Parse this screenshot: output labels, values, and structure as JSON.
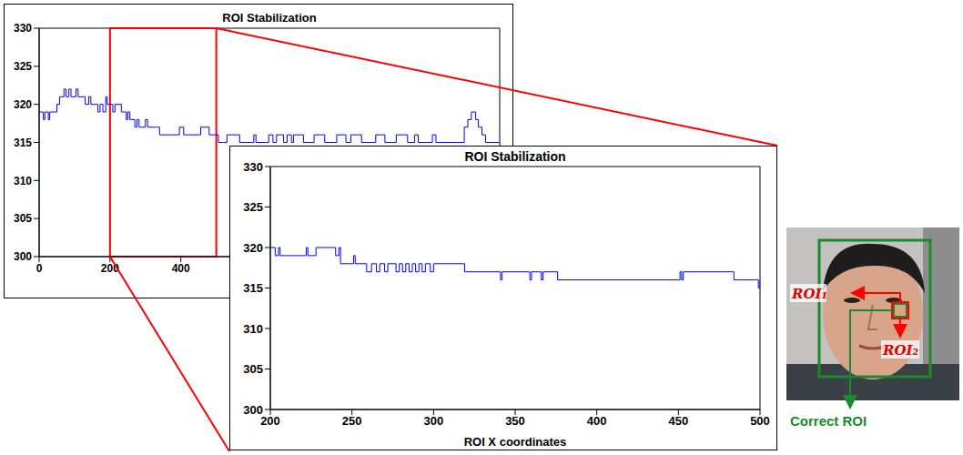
{
  "chart_data": [
    {
      "type": "line",
      "title": "ROI Stabilization",
      "color": "#0000ff",
      "x": [
        0,
        12,
        16,
        26,
        30,
        44,
        50,
        58,
        70,
        76,
        84,
        90,
        104,
        110,
        124,
        130,
        140,
        146,
        160,
        166,
        172,
        180,
        188,
        192,
        200,
        208,
        214,
        226,
        232,
        240,
        246,
        250,
        256,
        262,
        270,
        276,
        282,
        290,
        300,
        306,
        330,
        340,
        380,
        396,
        408,
        450,
        456,
        470,
        480,
        500,
        506,
        520,
        530,
        560,
        566,
        600,
        606,
        612,
        640,
        648,
        660,
        670,
        680,
        690,
        700,
        712,
        718,
        740,
        746,
        770,
        776,
        800,
        806,
        830,
        840,
        860,
        866,
        880,
        900,
        910,
        940,
        950,
        970,
        976,
        1000,
        1008,
        1030,
        1040,
        1060,
        1070,
        1100,
        1110,
        1120,
        1180,
        1200,
        1210,
        1220,
        1232,
        1240,
        1250,
        1260,
        1300
      ],
      "values": [
        319,
        318,
        319,
        318,
        319,
        319,
        320,
        321,
        322,
        321,
        322,
        321,
        322,
        321,
        321,
        320,
        321,
        320,
        320,
        319,
        320,
        319,
        321,
        320,
        320,
        319,
        320,
        320,
        319,
        319,
        318,
        319,
        318,
        318,
        317,
        318,
        317,
        317,
        318,
        317,
        317,
        316,
        316,
        317,
        316,
        316,
        317,
        317,
        316,
        316,
        315,
        315,
        316,
        316,
        315,
        315,
        316,
        315,
        315,
        316,
        315,
        316,
        316,
        315,
        316,
        315,
        316,
        316,
        315,
        315,
        316,
        316,
        315,
        315,
        316,
        316,
        315,
        316,
        316,
        315,
        315,
        316,
        316,
        315,
        315,
        316,
        316,
        315,
        316,
        315,
        315,
        316,
        315,
        315,
        317,
        318,
        319,
        318,
        317,
        316,
        315,
        315
      ],
      "xlim": [
        0,
        1300
      ],
      "ylim": [
        300,
        330
      ],
      "xticks": [
        0,
        200,
        400
      ],
      "yticks": [
        300,
        305,
        310,
        315,
        320,
        325,
        330
      ]
    },
    {
      "type": "line",
      "title": "ROI Stabilization",
      "xlabel": "ROI X coordinates",
      "color": "#0000ff",
      "x": [
        200,
        203,
        205,
        206,
        222,
        223,
        228,
        238,
        240,
        242,
        243,
        250,
        251,
        252,
        258,
        259,
        262,
        265,
        267,
        270,
        272,
        276,
        277,
        279,
        281,
        283,
        285,
        287,
        289,
        291,
        293,
        295,
        297,
        298,
        300,
        318,
        319,
        340,
        341,
        342,
        358,
        359,
        360,
        365,
        366,
        367,
        375,
        376,
        450,
        451,
        452,
        453,
        483,
        484,
        498,
        499,
        500
      ],
      "values": [
        320,
        319,
        320,
        319,
        320,
        319,
        320,
        320,
        319,
        320,
        318,
        318,
        319,
        318,
        318,
        317,
        318,
        317,
        318,
        317,
        318,
        318,
        317,
        318,
        317,
        318,
        317,
        318,
        317,
        318,
        317,
        318,
        318,
        317,
        318,
        318,
        317,
        317,
        316,
        317,
        317,
        316,
        317,
        317,
        316,
        317,
        317,
        316,
        316,
        317,
        316,
        317,
        317,
        316,
        316,
        315,
        316
      ],
      "xlim": [
        200,
        500
      ],
      "ylim": [
        300,
        330
      ],
      "xticks": [
        200,
        250,
        300,
        350,
        400,
        450,
        500
      ],
      "yticks": [
        300,
        305,
        310,
        315,
        320,
        325,
        330
      ]
    }
  ],
  "image": {
    "roi1": "ROI₁",
    "roi2": "ROI₂",
    "correct": "Correct ROI"
  }
}
